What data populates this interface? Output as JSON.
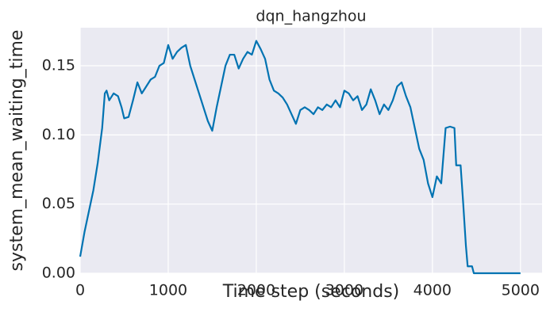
{
  "chart_data": {
    "type": "line",
    "title": "dqn_hangzhou",
    "x_label": "Time step (seconds)",
    "y_label": "system_mean_waiting_time",
    "x": [
      0,
      50,
      100,
      150,
      200,
      250,
      280,
      300,
      330,
      380,
      430,
      470,
      500,
      550,
      600,
      650,
      700,
      750,
      800,
      850,
      900,
      950,
      1000,
      1050,
      1100,
      1150,
      1200,
      1250,
      1300,
      1350,
      1400,
      1450,
      1500,
      1550,
      1600,
      1650,
      1700,
      1750,
      1800,
      1850,
      1900,
      1950,
      2000,
      2050,
      2100,
      2150,
      2200,
      2250,
      2300,
      2350,
      2400,
      2450,
      2500,
      2550,
      2600,
      2650,
      2700,
      2750,
      2800,
      2850,
      2900,
      2950,
      3000,
      3050,
      3100,
      3150,
      3200,
      3250,
      3300,
      3350,
      3400,
      3450,
      3500,
      3550,
      3600,
      3650,
      3700,
      3750,
      3800,
      3850,
      3900,
      3950,
      4000,
      4050,
      4100,
      4150,
      4200,
      4250,
      4270,
      4320,
      4350,
      4380,
      4400,
      4450,
      4470,
      4700,
      5000
    ],
    "series": [
      {
        "name": "system_mean_waiting_time",
        "color": "#0173b2",
        "values": [
          0.012,
          0.03,
          0.045,
          0.06,
          0.08,
          0.105,
          0.13,
          0.132,
          0.125,
          0.13,
          0.128,
          0.12,
          0.112,
          0.113,
          0.125,
          0.138,
          0.13,
          0.135,
          0.14,
          0.142,
          0.15,
          0.152,
          0.165,
          0.155,
          0.16,
          0.163,
          0.165,
          0.15,
          0.14,
          0.13,
          0.12,
          0.11,
          0.103,
          0.12,
          0.135,
          0.15,
          0.158,
          0.158,
          0.148,
          0.155,
          0.16,
          0.158,
          0.168,
          0.162,
          0.155,
          0.14,
          0.132,
          0.13,
          0.127,
          0.122,
          0.115,
          0.108,
          0.118,
          0.12,
          0.118,
          0.115,
          0.12,
          0.118,
          0.122,
          0.12,
          0.125,
          0.12,
          0.132,
          0.13,
          0.125,
          0.128,
          0.118,
          0.122,
          0.133,
          0.125,
          0.115,
          0.122,
          0.118,
          0.125,
          0.135,
          0.138,
          0.128,
          0.12,
          0.105,
          0.09,
          0.082,
          0.065,
          0.055,
          0.07,
          0.065,
          0.105,
          0.106,
          0.105,
          0.078,
          0.078,
          0.05,
          0.02,
          0.005,
          0.005,
          0,
          0,
          0
        ]
      }
    ],
    "xlim": [
      0,
      5245
    ],
    "xticks": [
      0,
      1000,
      2000,
      3000,
      4000,
      5000
    ],
    "ylim": [
      0,
      0.1775
    ],
    "yticks": [
      {
        "value": 0,
        "label": "0.00"
      },
      {
        "value": 0.05,
        "label": "0.05"
      },
      {
        "value": 0.1,
        "label": "0.10"
      },
      {
        "value": 0.15,
        "label": "0.15"
      }
    ],
    "grid": true
  }
}
